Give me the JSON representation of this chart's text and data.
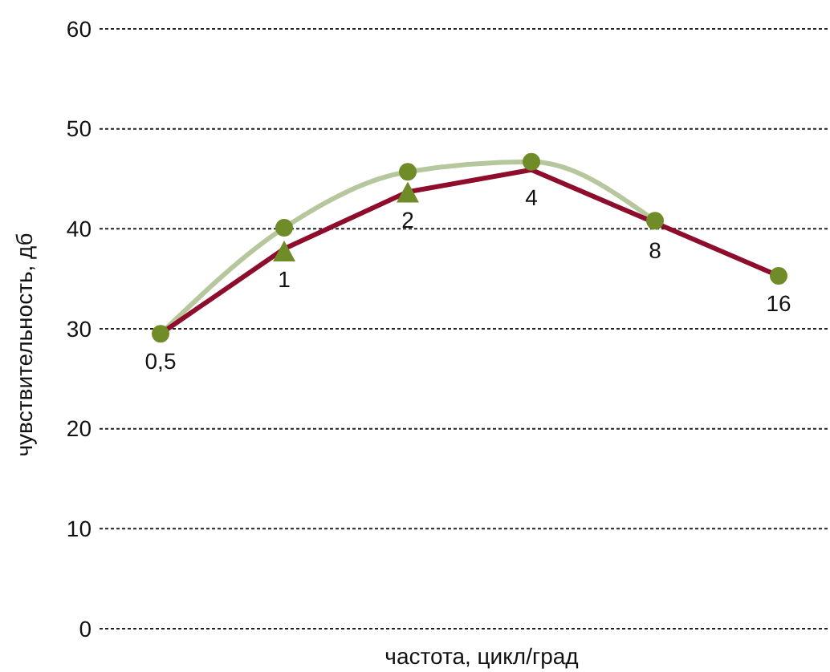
{
  "chart_data": {
    "type": "line",
    "xlabel": "частота, цикл/град",
    "ylabel": "чувствительность, дб",
    "categories": [
      "0,5",
      "1",
      "2",
      "4",
      "8",
      "16"
    ],
    "ylim": [
      0,
      60
    ],
    "yticks": [
      0,
      10,
      20,
      30,
      40,
      50,
      60
    ],
    "grid": "y",
    "tick_labels": "y",
    "series": [
      {
        "color": "#b7c79d",
        "marker": "none",
        "values": [
          29.5,
          40.1,
          45.7,
          46.7,
          40.8,
          null
        ]
      },
      {
        "color": "#8e0c2c",
        "marker": "none",
        "values": [
          29.5,
          38,
          43.7,
          45.9,
          40.6,
          35.3
        ]
      },
      {
        "type": "scatter",
        "color": "#6f8c28",
        "marker": "circle",
        "values": [
          29.5,
          40.1,
          45.7,
          46.7,
          40.8,
          35.3
        ]
      },
      {
        "type": "scatter",
        "color": "#6f8c28",
        "marker": "triangle",
        "values": [
          null,
          37.7,
          43.6,
          null,
          null,
          null
        ]
      }
    ]
  }
}
